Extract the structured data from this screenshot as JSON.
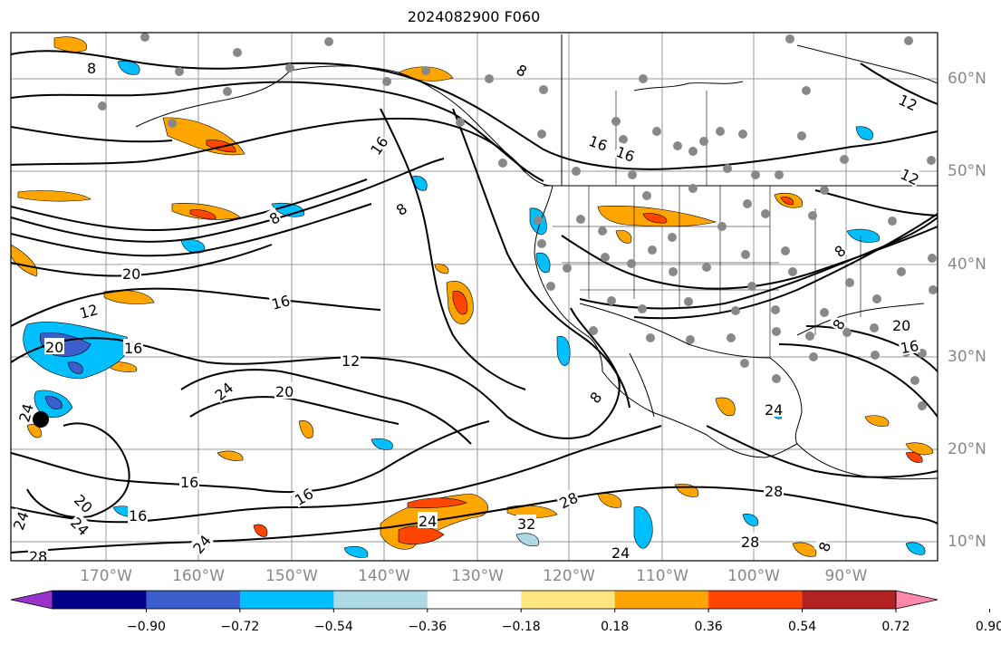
{
  "title": "2024082900 F060",
  "longitude_labels": [
    "170°W",
    "160°W",
    "150°W",
    "140°W",
    "130°W",
    "120°W",
    "110°W",
    "100°W",
    "90°W"
  ],
  "latitude_labels": [
    "60°N",
    "50°N",
    "40°N",
    "30°N",
    "20°N",
    "10°N"
  ],
  "contour_labels": [
    "8",
    "8",
    "8",
    "8",
    "8",
    "8",
    "8",
    "8",
    "12",
    "12",
    "12",
    "12",
    "16",
    "16",
    "16",
    "16",
    "16",
    "16",
    "16",
    "16",
    "16",
    "20",
    "20",
    "20",
    "20",
    "20",
    "24",
    "24",
    "24",
    "24",
    "24",
    "24",
    "24",
    "24",
    "28",
    "28",
    "28",
    "28",
    "32"
  ],
  "colorbar": {
    "ticks": [
      "−0.90",
      "−0.72",
      "−0.54",
      "−0.36",
      "−0.18",
      "0.18",
      "0.36",
      "0.54",
      "0.72",
      "0.90"
    ],
    "colors": [
      "#9932cc",
      "#00008b",
      "#3a5fcd",
      "#00bfff",
      "#add8e6",
      "#ffffff",
      "#ffe680",
      "#ffa500",
      "#ff4500",
      "#b22222",
      "#ff88aa"
    ]
  },
  "fill_colors": {
    "pos_weak": "#ffa500",
    "pos_strong": "#ff4500",
    "neg_weak": "#00bfff",
    "neg_strong": "#3a5fcd",
    "neg_light": "#add8e6",
    "yellow": "#ffe680"
  },
  "station_color": "#888888"
}
